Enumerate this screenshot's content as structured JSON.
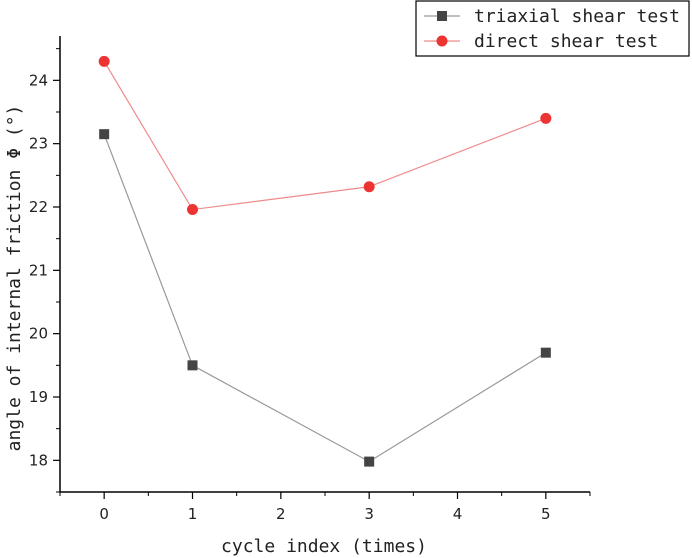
{
  "chart_data": {
    "type": "line",
    "title": "",
    "xlabel": "cycle index (times)",
    "ylabel": "angle of internal friction Φ (°)",
    "x": [
      0,
      1,
      3,
      5
    ],
    "xlim": [
      -0.5,
      5.5
    ],
    "ylim": [
      17.5,
      24.7
    ],
    "x_ticks": [
      "0",
      "1",
      "2",
      "3",
      "4",
      "5"
    ],
    "y_ticks": [
      "18",
      "19",
      "20",
      "21",
      "22",
      "23",
      "24"
    ],
    "grid": false,
    "legend_position": "top-right",
    "series": [
      {
        "name": "triaxial shear test",
        "values": [
          23.15,
          19.5,
          17.98,
          19.7
        ],
        "color": "#444444",
        "line_color": "#999999",
        "marker": "square"
      },
      {
        "name": "direct shear test",
        "values": [
          24.3,
          21.96,
          22.32,
          23.4
        ],
        "color": "#ee3333",
        "line_color": "#f08a8a",
        "marker": "circle"
      }
    ]
  }
}
